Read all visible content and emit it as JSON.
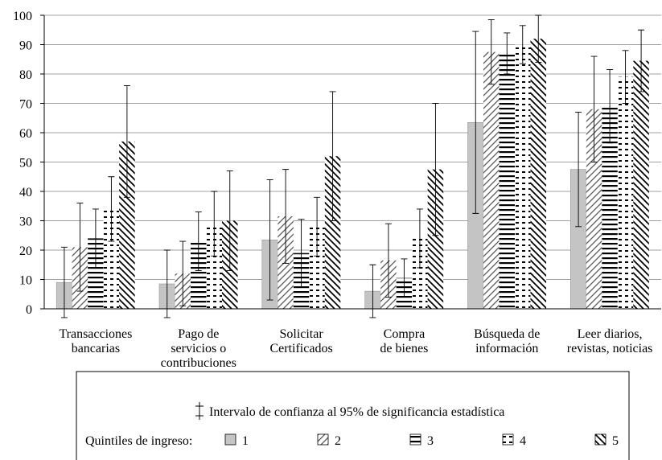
{
  "chart_data": {
    "type": "bar",
    "categories": [
      "Transacciones\nbancarias",
      "Pago de\nservicios o\ncontribuciones",
      "Solicitar\nCertificados",
      "Compra\nde bienes",
      "Búsqueda de\ninformación",
      "Leer diarios,\nrevistas, noticias"
    ],
    "series": [
      {
        "name": "1",
        "color": "#c4c4c4",
        "pattern": "solid",
        "values": [
          9,
          8.5,
          23.5,
          6,
          63.5,
          47.5
        ],
        "errors": [
          12,
          11.5,
          20.5,
          9,
          31,
          19.5
        ]
      },
      {
        "name": "2",
        "color": "#555555",
        "pattern": "diagonal-up",
        "values": [
          21,
          12,
          31.5,
          16.5,
          87.5,
          68
        ],
        "errors": [
          15,
          11,
          16,
          12.5,
          11,
          18
        ]
      },
      {
        "name": "3",
        "color": "#000000",
        "pattern": "horizontal",
        "values": [
          24,
          23,
          19,
          10.5,
          87,
          69
        ],
        "errors": [
          10,
          10,
          11.5,
          6.5,
          7,
          12.5
        ]
      },
      {
        "name": "4",
        "color": "#000000",
        "pattern": "dashed",
        "values": [
          34,
          29,
          28,
          24,
          90,
          79
        ],
        "errors": [
          11,
          11,
          10,
          10,
          6.5,
          9
        ]
      },
      {
        "name": "5",
        "color": "#000000",
        "pattern": "diagonal-down",
        "values": [
          57,
          30,
          52,
          47.5,
          92,
          84.5
        ],
        "errors": [
          19,
          17,
          22,
          22.5,
          8,
          10.5
        ]
      }
    ],
    "ylim": [
      0,
      100
    ],
    "yticks": [
      0,
      10,
      20,
      30,
      40,
      50,
      60,
      70,
      80,
      90,
      100
    ],
    "grid": true,
    "error_bar_note": "Intervalo de confianza al 95% de significancia estadística",
    "legend_title": "Quintiles de ingreso:"
  }
}
